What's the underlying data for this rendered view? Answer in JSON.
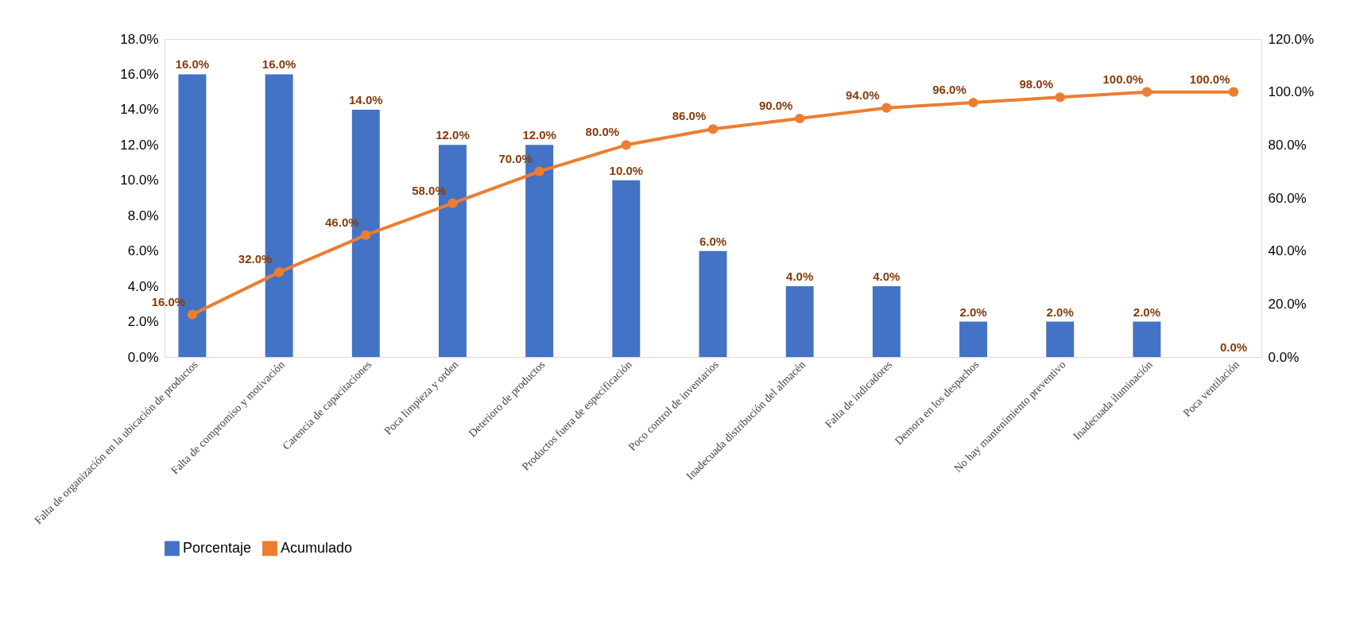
{
  "chart_data": {
    "type": "bar",
    "categories": [
      "Falta de organización en la ubicación de productos",
      "Falta de compromiso y motivación",
      "Carencia de capacitaciones",
      "Poca limpieza y orden",
      "Deterioro de productos",
      "Productos fuera de especificación",
      "Poco control de inventarios",
      "Inadecuada distribución del almacén",
      "Falta de indicadores",
      "Demora en los despachos",
      "No hay mantenimiento preventivo",
      "Inadecuada iluminación",
      "Poca ventilación"
    ],
    "series": [
      {
        "name": "Porcentaje",
        "color": "#4472c4",
        "values": [
          16,
          16,
          14,
          12,
          12,
          10,
          6,
          4,
          4,
          2,
          2,
          2,
          0
        ],
        "value_labels": [
          "16.0%",
          "16.0%",
          "14.0%",
          "12.0%",
          "12.0%",
          "10.0%",
          "6.0%",
          "4.0%",
          "4.0%",
          "2.0%",
          "2.0%",
          "2.0%",
          "0.0%"
        ]
      },
      {
        "name": "Acumulado",
        "type": "line",
        "axis": "y2",
        "color": "#ed7d31",
        "marker": "circle",
        "values": [
          16,
          32,
          46,
          58,
          70,
          80,
          86,
          90,
          94,
          96,
          98,
          100,
          100
        ],
        "value_labels": [
          "16.0%",
          "32.0%",
          "46.0%",
          "58.0%",
          "70.0%",
          "80.0%",
          "86.0%",
          "90.0%",
          "94.0%",
          "96.0%",
          "98.0%",
          "100.0%",
          "100.0%"
        ]
      }
    ],
    "ylim": [
      0,
      18
    ],
    "yticks": [
      {
        "value": 0,
        "label": "0.0%"
      },
      {
        "value": 2,
        "label": "2.0%"
      },
      {
        "value": 4,
        "label": "4.0%"
      },
      {
        "value": 6,
        "label": "6.0%"
      },
      {
        "value": 8,
        "label": "8.0%"
      },
      {
        "value": 10,
        "label": "10.0%"
      },
      {
        "value": 12,
        "label": "12.0%"
      },
      {
        "value": 14,
        "label": "14.0%"
      },
      {
        "value": 16,
        "label": "16.0%"
      },
      {
        "value": 18,
        "label": "18.0%"
      }
    ],
    "y2lim": [
      0,
      120
    ],
    "y2ticks": [
      {
        "value": 0,
        "label": "0.0%"
      },
      {
        "value": 20,
        "label": "20.0%"
      },
      {
        "value": 40,
        "label": "40.0%"
      },
      {
        "value": 60,
        "label": "60.0%"
      },
      {
        "value": 80,
        "label": "80.0%"
      },
      {
        "value": 100,
        "label": "100.0%"
      },
      {
        "value": 120,
        "label": "120.0%"
      }
    ],
    "grid": false,
    "legend": "bottom"
  }
}
